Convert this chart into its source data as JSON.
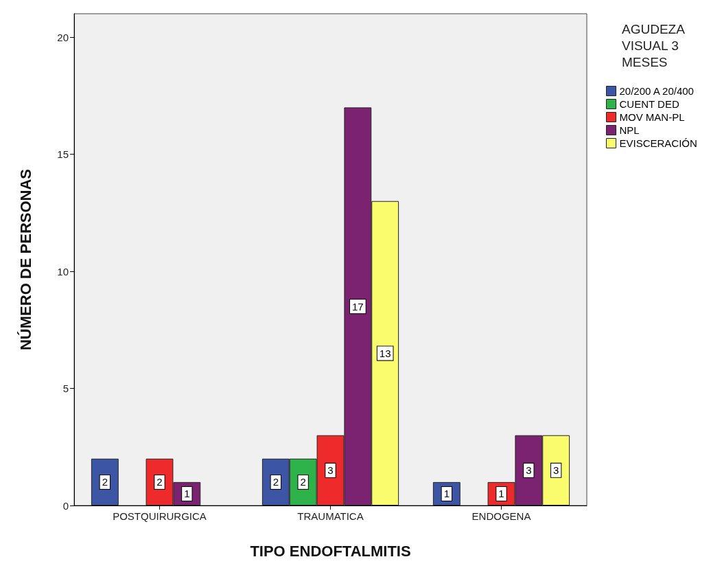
{
  "chart_data": {
    "type": "bar",
    "xlabel": "TIPO ENDOFTALMITIS",
    "ylabel": "NÚMERO DE PERSONAS",
    "legend_title": "AGUDEZA VISUAL 3 MESES",
    "categories": [
      "POSTQUIRURGICA",
      "TRAUMATICA",
      "ENDOGENA"
    ],
    "series": [
      {
        "name": "20/200 A 20/400",
        "color": "#3c55a5",
        "values": [
          2,
          2,
          1
        ]
      },
      {
        "name": "CUENT DED",
        "color": "#2db34a",
        "values": [
          null,
          2,
          null
        ]
      },
      {
        "name": "MOV MAN-PL",
        "color": "#ee2a2a",
        "values": [
          2,
          3,
          1
        ]
      },
      {
        "name": "NPL",
        "color": "#7b2270",
        "values": [
          1,
          17,
          3
        ]
      },
      {
        "name": "EVISCERACIÓN",
        "color": "#fbfb6e",
        "values": [
          null,
          13,
          3
        ]
      }
    ],
    "ylim": [
      0,
      21
    ],
    "yticks": [
      0,
      5,
      10,
      15,
      20
    ],
    "grid": false,
    "legend": "right",
    "data_labels": true
  }
}
